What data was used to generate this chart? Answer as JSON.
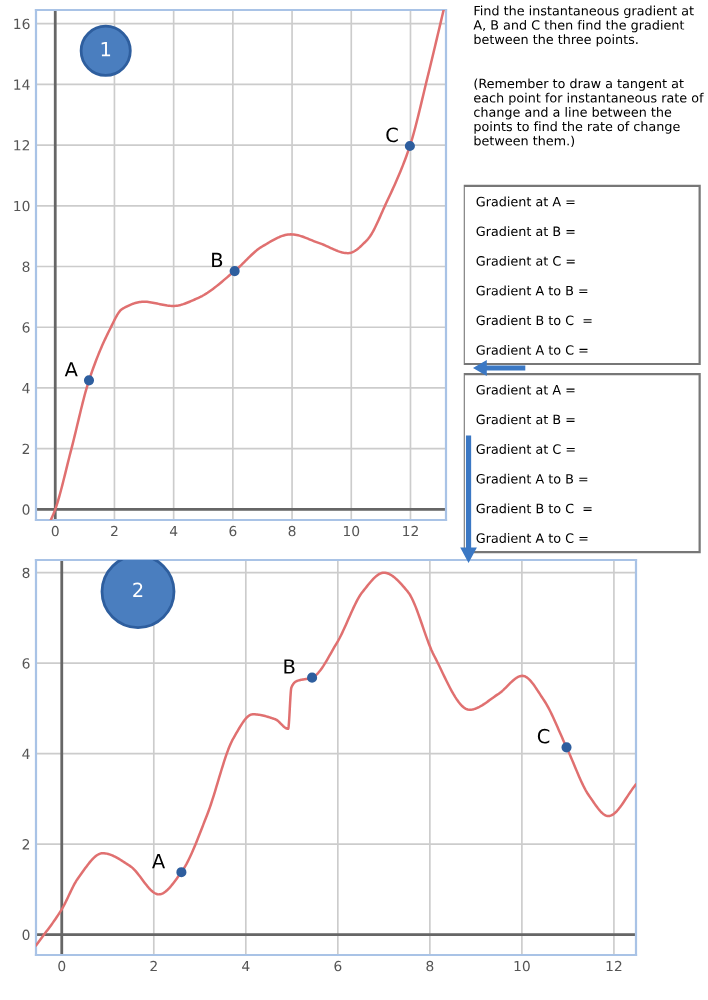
{
  "chart_data": [
    {
      "type": "line",
      "annotations": [
        "1",
        {
          "text": "A",
          "x": 1.14,
          "y": 4.25
        },
        {
          "text": "B",
          "x": 6.06,
          "y": 7.85
        },
        {
          "text": "C",
          "x": 11.98,
          "y": 11.97
        }
      ],
      "xlim": [
        -0.65,
        13.2
      ],
      "ylim": [
        -0.35,
        16.45
      ],
      "xticks": [
        0,
        2,
        4,
        6,
        8,
        10,
        12
      ],
      "yticks": [
        0,
        2,
        4,
        6,
        8,
        10,
        12,
        14,
        16
      ],
      "grid": true,
      "series": [
        {
          "type": "line",
          "color": "#e07070",
          "x": [
            -0.15,
            0,
            0.54,
            1.14,
            1.83,
            2.26,
            3.0,
            3.98,
            4.84,
            6.06,
            6.99,
            7.96,
            8.92,
            9.89,
            10.54,
            11.18,
            11.98,
            12.58,
            13.12
          ],
          "values": [
            -0.35,
            0,
            1.97,
            4.25,
            5.9,
            6.6,
            6.84,
            6.7,
            6.97,
            7.85,
            8.66,
            9.06,
            8.77,
            8.44,
            8.88,
            10.09,
            11.97,
            14.25,
            16.45
          ]
        },
        {
          "type": "scatter",
          "color": "#2e5e9e",
          "x": [
            1.14,
            6.06,
            11.98
          ],
          "values": [
            4.25,
            7.85,
            11.97
          ],
          "marker": "circle"
        }
      ]
    },
    {
      "type": "line",
      "annotations": [
        "2",
        {
          "text": "A",
          "x": 2.6,
          "y": 1.38
        },
        {
          "text": "B",
          "x": 5.44,
          "y": 5.68
        },
        {
          "text": "C",
          "x": 10.97,
          "y": 4.14
        }
      ],
      "xlim": [
        -0.56,
        12.48
      ],
      "ylim": [
        -0.45,
        8.28
      ],
      "xticks": [
        0,
        2,
        4,
        6,
        8,
        10,
        12
      ],
      "yticks": [
        0,
        2,
        4,
        6,
        8
      ],
      "grid": true,
      "series": [
        {
          "type": "line",
          "color": "#e07070",
          "x": [
            -0.56,
            0,
            0.35,
            0.89,
            1.48,
            2.11,
            2.6,
            3.16,
            3.73,
            4.15,
            4.64,
            4.92,
            4.99,
            5.1,
            5.44,
            5.98,
            6.54,
            7.0,
            7.52,
            8.09,
            8.86,
            9.49,
            10.01,
            10.48,
            10.97,
            11.46,
            11.88,
            12.48
          ],
          "values": [
            -0.24,
            0.56,
            1.24,
            1.8,
            1.52,
            0.89,
            1.38,
            2.65,
            4.34,
            4.87,
            4.76,
            4.55,
            5.46,
            5.6,
            5.68,
            6.45,
            7.58,
            8.0,
            7.58,
            6.17,
            4.97,
            5.32,
            5.72,
            5.18,
            4.14,
            3.07,
            2.62,
            3.32
          ]
        },
        {
          "type": "scatter",
          "color": "#2e5e9e",
          "x": [
            2.6,
            5.44,
            10.97
          ],
          "values": [
            1.38,
            5.68,
            4.14
          ],
          "marker": "circle"
        }
      ]
    },
    {
      "type": "other",
      "annotations": [
        "Find the instantaneous gradient at A, B and C then find the gradient between the three points.",
        "(Remember to draw a tangent at each point for instantaneous rate of change and a line between the points to find the rate of change between them.)",
        "Gradient at A =",
        "Gradient at B =",
        "Gradient at C =",
        "Gradient A to B =",
        "Gradient B to C  =",
        "Gradient A to C =",
        "Gradient at A =",
        "Gradient at B =",
        "Gradient at C =",
        "Gradient A to B =",
        "Gradient B to C  =",
        "Gradient A to C ="
      ]
    }
  ]
}
